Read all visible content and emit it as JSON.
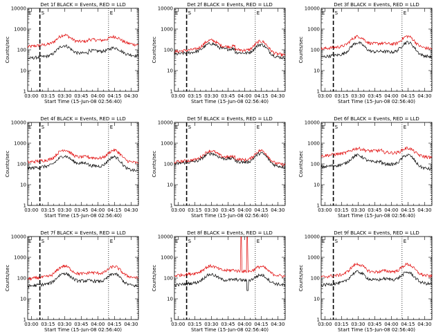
{
  "chart_data": {
    "type": "line",
    "layout": "3x3 grid",
    "title_template": "BLACK = Events, RED = LLD",
    "xlabel": "Start Time (15-Jun-08 02:56:40)",
    "ylabel": "Counts/sec",
    "xlim_minutes": [
      0,
      100
    ],
    "x_ticks": [
      {
        "label": "03:00",
        "minute": 3.33
      },
      {
        "label": "03:15",
        "minute": 18.33
      },
      {
        "label": "03:30",
        "minute": 33.33
      },
      {
        "label": "03:45",
        "minute": 48.33
      },
      {
        "label": "04:00",
        "minute": 63.33
      },
      {
        "label": "04:15",
        "minute": 78.33
      },
      {
        "label": "04:30",
        "minute": 93.33
      }
    ],
    "ylim": [
      1,
      10000
    ],
    "y_scale": "log",
    "y_ticks": [
      {
        "label": "1",
        "value": 1
      },
      {
        "label": "10",
        "value": 10
      },
      {
        "label": "100",
        "value": 100
      },
      {
        "label": "1000",
        "value": 1000
      },
      {
        "label": "10000",
        "value": 10000
      }
    ],
    "series_names": [
      "Events",
      "LLD"
    ],
    "series_colors": {
      "Events": "#000000",
      "LLD": "#e00000"
    },
    "region_labels": {
      "E": "E",
      "S": "S"
    },
    "charts": [
      {
        "name": "Det 1",
        "title": "Det 1f BLACK = Events, RED = LLD",
        "markers": {
          "E_start": 0,
          "S": 11,
          "E_end": 73
        },
        "events": {
          "base": 38,
          "peak1": 160,
          "peak2": 125,
          "end": 50
        },
        "lld": {
          "base": 140,
          "peak1": 520,
          "peak2": 430,
          "end": 170
        }
      },
      {
        "name": "Det 2",
        "title": "Det 2f BLACK = Events, RED = LLD",
        "markers": {
          "E_start": 0,
          "S": 11,
          "E_end": 73
        },
        "events": {
          "base": 60,
          "peak1": 200,
          "peak2": 180,
          "end": 40
        },
        "lld": {
          "base": 80,
          "peak1": 290,
          "peak2": 260,
          "end": 55
        }
      },
      {
        "name": "Det 3",
        "title": "Det 3f BLACK = Events, RED = LLD",
        "markers": {
          "E_start": 0,
          "S": 11,
          "E_end": 73
        },
        "events": {
          "base": 45,
          "peak1": 220,
          "peak2": 230,
          "end": 45
        },
        "lld": {
          "base": 110,
          "peak1": 440,
          "peak2": 450,
          "end": 110
        }
      },
      {
        "name": "Det 4",
        "title": "Det 4f BLACK = Events, RED = LLD",
        "markers": {
          "E_start": 0,
          "S": 11,
          "E_end": 73
        },
        "events": {
          "base": 60,
          "peak1": 240,
          "peak2": 220,
          "end": 45
        },
        "lld": {
          "base": 120,
          "peak1": 480,
          "peak2": 460,
          "end": 110
        }
      },
      {
        "name": "Det 5",
        "title": "Det 5f BLACK = Events, RED = LLD",
        "markers": {
          "E_start": 0,
          "S": 11,
          "E_end": 73
        },
        "events": {
          "base": 100,
          "peak1": 320,
          "peak2": 330,
          "end": 70
        },
        "lld": {
          "base": 120,
          "peak1": 430,
          "peak2": 440,
          "end": 90
        }
      },
      {
        "name": "Det 6",
        "title": "Det 6f BLACK = Events, RED = LLD",
        "markers": {
          "E_start": 0,
          "S": 11,
          "E_end": 73
        },
        "events": {
          "base": 70,
          "peak1": 260,
          "peak2": 270,
          "end": 55
        },
        "lld": {
          "base": 240,
          "peak1": 560,
          "peak2": 580,
          "end": 200
        }
      },
      {
        "name": "Det 7",
        "title": "Det 7f BLACK = Events, RED = LLD",
        "markers": {
          "E_start": 0,
          "S": 11,
          "E_end": 73
        },
        "events": {
          "base": 40,
          "peak1": 170,
          "peak2": 160,
          "end": 40
        },
        "lld": {
          "base": 90,
          "peak1": 380,
          "peak2": 360,
          "end": 100
        }
      },
      {
        "name": "Det 8",
        "title": "Det 8f BLACK = Events, RED = LLD",
        "markers": {
          "E_start": 0,
          "S": 11,
          "E_end": 73
        },
        "events": {
          "base": 45,
          "peak1": 150,
          "peak2": 140,
          "end": 45
        },
        "lld": {
          "base": 130,
          "peak1": 380,
          "peak2": 360,
          "end": 120
        },
        "spike": {
          "from": 60,
          "to": 66,
          "value": 9500
        }
      },
      {
        "name": "Det 9",
        "title": "Det 9f BLACK = Events, RED = LLD",
        "markers": {
          "E_start": 0,
          "S": 11,
          "E_end": 73
        },
        "events": {
          "base": 45,
          "peak1": 200,
          "peak2": 190,
          "end": 50
        },
        "lld": {
          "base": 110,
          "peak1": 470,
          "peak2": 460,
          "end": 120
        }
      }
    ]
  }
}
